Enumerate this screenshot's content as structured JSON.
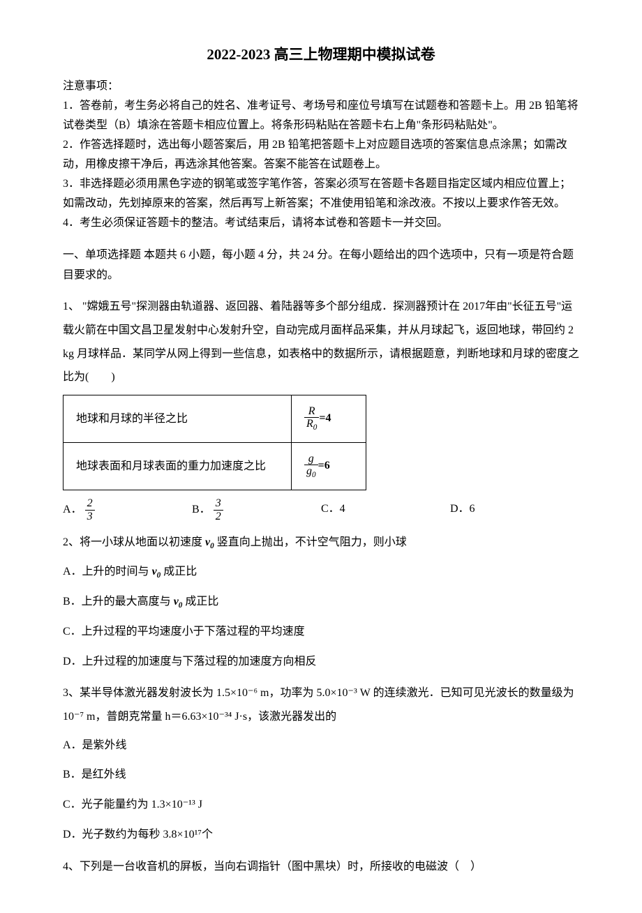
{
  "title": "2022-2023 高三上物理期中模拟试卷",
  "instructions": {
    "header": "注意事项：",
    "items": [
      "1．答卷前，考生务必将自己的姓名、准考证号、考场号和座位号填写在试题卷和答题卡上。用 2B 铅笔将试卷类型（B）填涂在答题卡相应位置上。将条形码粘贴在答题卡右上角\"条形码粘贴处\"。",
      "2．作答选择题时，选出每小题答案后，用 2B 铅笔把答题卡上对应题目选项的答案信息点涂黑；如需改动，用橡皮擦干净后，再选涂其他答案。答案不能答在试题卷上。",
      "3．非选择题必须用黑色字迹的钢笔或签字笔作答，答案必须写在答题卡各题目指定区域内相应位置上；如需改动，先划掉原来的答案，然后再写上新答案；不准使用铅笔和涂改液。不按以上要求作答无效。",
      "4．考生必须保证答题卡的整洁。考试结束后，请将本试卷和答题卡一并交回。"
    ]
  },
  "section1": {
    "header": "一、单项选择题  本题共 6 小题，每小题 4 分，共 24 分。在每小题给出的四个选项中，只有一项是符合题目要求的。"
  },
  "q1": {
    "text_part1": "1、 \"嫦娥五号\"探测器由轨道器、返回器、着陆器等多个部分组成．探测器预计在 2017年由\"长征五号\"运载火箭在中国文昌卫星发射中心发射升空，自动完成月面样品采集，并从月球起飞，返回地球，带回约 2 kg 月球样品．某同学从网上得到一些信息，如表格中的数据所示，请根据题意，判断地球和月球的密度之比为(　　)",
    "table": {
      "row1_label": "地球和月球的半径之比",
      "row1_num": "R",
      "row1_den": "R",
      "row1_densub": "0",
      "row1_eq": "=4",
      "row2_label": "地球表面和月球表面的重力加速度之比",
      "row2_num": "g",
      "row2_den": "g",
      "row2_densub": "0",
      "row2_eq": "=6"
    },
    "optA_label": "A．",
    "optA_num": "2",
    "optA_den": "3",
    "optB_label": "B．",
    "optB_num": "3",
    "optB_den": "2",
    "optC": "C．4",
    "optD": "D．6"
  },
  "q2": {
    "text_prefix": "2、将一小球从地面以初速度 ",
    "v0": "v",
    "v0sub": "0",
    "text_suffix": " 竖直向上抛出，不计空气阻力，则小球",
    "optA_prefix": "A．上升的时间与 ",
    "optA_suffix": " 成正比",
    "optB_prefix": "B．上升的最大高度与 ",
    "optB_suffix": " 成正比",
    "optC": "C．上升过程的平均速度小于下落过程的平均速度",
    "optD": "D．上升过程的加速度与下落过程的加速度方向相反"
  },
  "q3": {
    "text": "3、某半导体激光器发射波长为 1.5×10⁻⁶ m，功率为 5.0×10⁻³ W 的连续激光．已知可见光波长的数量级为 10⁻⁷ m，普朗克常量 h＝6.63×10⁻³⁴ J·s，该激光器发出的",
    "optA": "A．是紫外线",
    "optB": "B．是红外线",
    "optC": "C．光子能量约为 1.3×10⁻¹³ J",
    "optD": "D．光子数约为每秒 3.8×10¹⁷个"
  },
  "q4": {
    "text": "4、下列是一台收音机的屏板，当向右调指针（图中黑块）时，所接收的电磁波（　）"
  },
  "colors": {
    "text": "#000000",
    "background": "#ffffff",
    "border": "#000000"
  }
}
